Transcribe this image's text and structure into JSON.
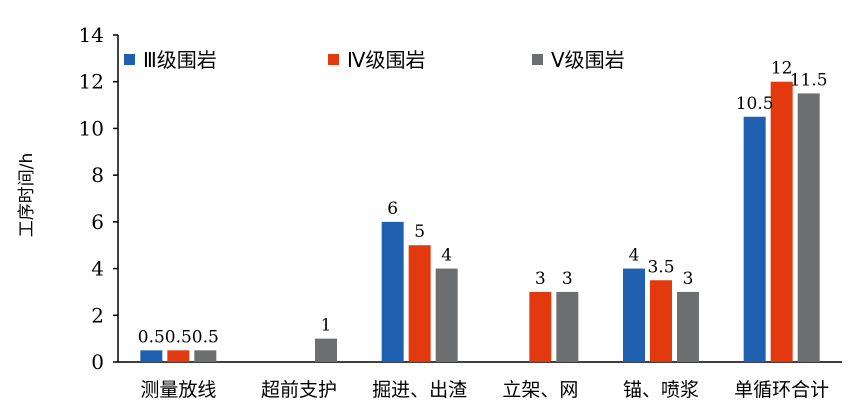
{
  "chart_data": {
    "type": "bar",
    "title": "",
    "xlabel": "",
    "ylabel": "工序时间/h",
    "ylim": [
      0,
      14
    ],
    "yticks": [
      0,
      2,
      4,
      6,
      8,
      10,
      12,
      14
    ],
    "grid": false,
    "legend_position": "top",
    "categories": [
      "测量放线",
      "超前支护",
      "掘进、出渣",
      "立架、网",
      "锚、喷浆",
      "单循环合计"
    ],
    "series": [
      {
        "name": "Ⅲ级围岩",
        "color": "#1f5fb0",
        "values": [
          0.5,
          null,
          6,
          null,
          4,
          10.5
        ]
      },
      {
        "name": "Ⅳ级围岩",
        "color": "#e3390f",
        "values": [
          0.5,
          null,
          5,
          3,
          3.5,
          12
        ]
      },
      {
        "name": "Ⅴ级围岩",
        "color": "#6d6e70",
        "values": [
          0.5,
          1,
          4,
          3,
          3,
          11.5
        ]
      }
    ]
  }
}
